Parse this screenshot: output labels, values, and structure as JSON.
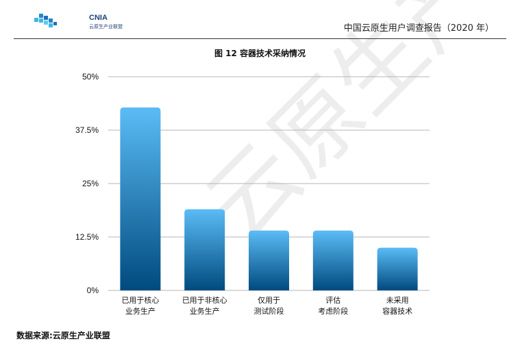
{
  "header": {
    "logo_text": "CNIA",
    "logo_subtitle": "云原生产业联盟",
    "title": "中国云原生用户调查报告（2020 年）"
  },
  "chart_data": {
    "type": "bar",
    "title": "图 12  容器技术采纳情况",
    "categories": [
      [
        "已用于核心",
        "业务生产"
      ],
      [
        "已用于非核心",
        "业务生产"
      ],
      [
        "仅用于",
        "测试阶段"
      ],
      [
        "评估",
        "考虑阶段"
      ],
      [
        "未采用",
        "容器技术"
      ]
    ],
    "values": [
      42.8,
      19.0,
      14.0,
      14.0,
      10.0
    ],
    "ylim": [
      0,
      50
    ],
    "yticks": [
      0,
      12.5,
      25,
      37.5,
      50
    ],
    "ytick_labels": [
      "0%",
      "12.5%",
      "25%",
      "37.5%",
      "50%"
    ],
    "grid": true,
    "colors": {
      "bar_top": "#5bbcf5",
      "bar_bottom": "#004a7f",
      "grid": "#b5b5b5"
    }
  },
  "footer": {
    "source": "数据来源:云原生产业联盟"
  },
  "watermark": "云原生产业联盟"
}
